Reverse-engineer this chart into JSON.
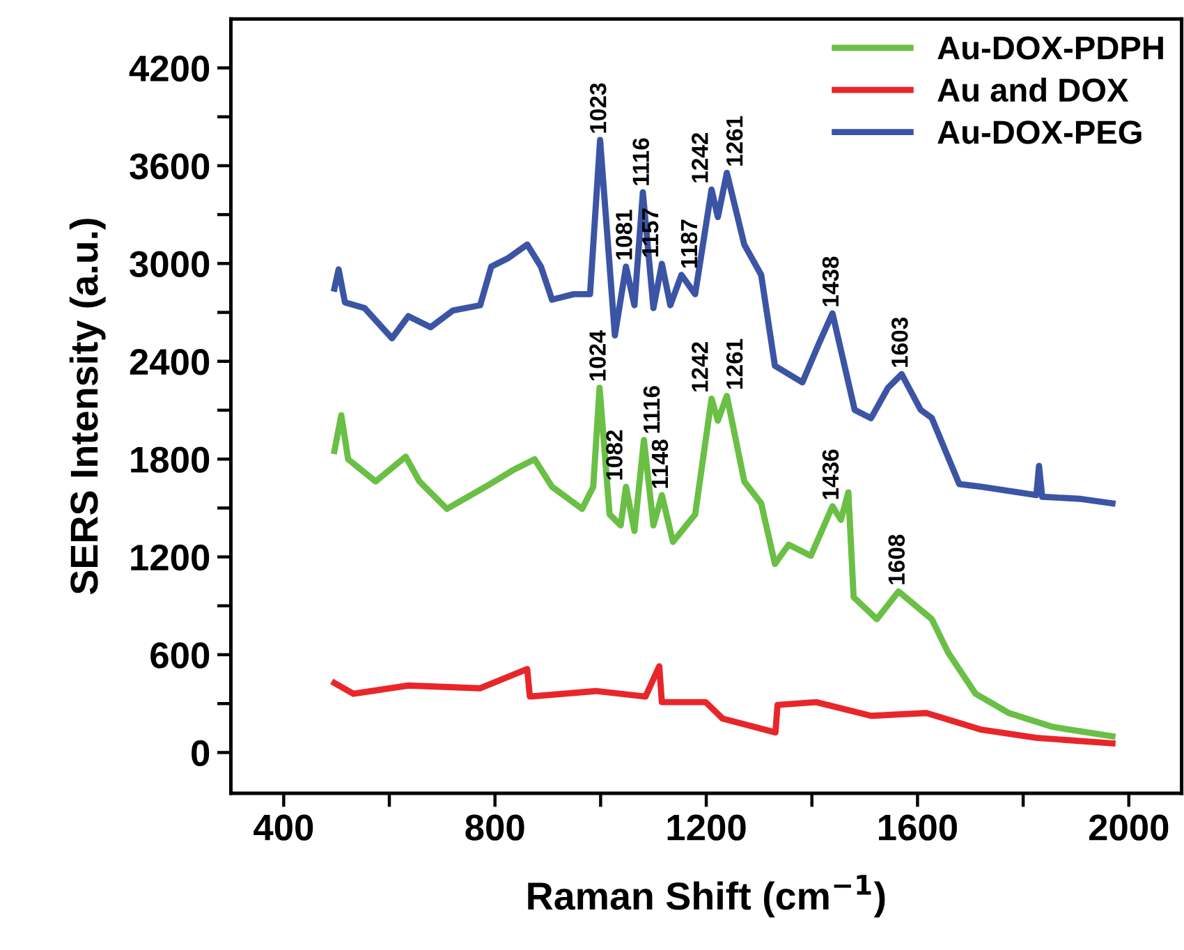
{
  "chart_data": {
    "type": "line",
    "xlabel": "Raman Shift (cm$^{−1}$)",
    "ylabel": "SERS Intensity (a.u.)",
    "xlim": [
      300,
      2100
    ],
    "ylim": [
      -250,
      4500
    ],
    "xticks": [
      400,
      {
        "value": 600,
        "label": null
      },
      800,
      {
        "value": 1000,
        "label": null
      },
      1200,
      {
        "value": 1400,
        "label": null
      },
      1600,
      {
        "value": 1800,
        "label": null
      },
      2000
    ],
    "yticks": [
      0,
      {
        "value": 300,
        "label": null
      },
      600,
      {
        "value": 900,
        "label": null
      },
      1200,
      {
        "value": 1500,
        "label": null
      },
      1800,
      {
        "value": 2100,
        "label": null
      },
      2400,
      {
        "value": 2700,
        "label": null
      },
      3000,
      {
        "value": 3300,
        "label": null
      },
      3600,
      {
        "value": 3900,
        "label": null
      },
      4200
    ],
    "legend": "top right",
    "grid": false,
    "marker": "none",
    "line_style": "solid",
    "series": [
      {
        "name": "Au-DOX-PDPH",
        "color": "#6abf45",
        "x": [
          496,
          509,
          522,
          574,
          631,
          657,
          709,
          782,
          834,
          875,
          908,
          965,
          986,
          998,
          1017,
          1038,
          1048,
          1064,
          1082,
          1100,
          1116,
          1137,
          1179,
          1210,
          1222,
          1239,
          1272,
          1304,
          1330,
          1356,
          1398,
          1439,
          1455,
          1469,
          1479,
          1523,
          1564,
          1627,
          1658,
          1710,
          1773,
          1856,
          1969
        ],
        "values": [
          1850,
          2069,
          1799,
          1663,
          1815,
          1663,
          1495,
          1630,
          1732,
          1799,
          1630,
          1495,
          1630,
          2238,
          1461,
          1393,
          1630,
          1359,
          1917,
          1393,
          1579,
          1292,
          1461,
          2171,
          2036,
          2188,
          1663,
          1528,
          1157,
          1275,
          1207,
          1511,
          1427,
          1596,
          953,
          818,
          988,
          818,
          613,
          360,
          242,
          157,
          99
        ]
      },
      {
        "name": "Au and DOX",
        "color": "#e8262a",
        "x": [
          496,
          532,
          636,
          772,
          861,
          866,
          991,
          1085,
          1111,
          1116,
          1199,
          1231,
          1331,
          1335,
          1408,
          1512,
          1617,
          1721,
          1825,
          1969
        ],
        "values": [
          427,
          360,
          411,
          394,
          512,
          343,
          377,
          343,
          529,
          309,
          309,
          208,
          123,
          292,
          309,
          225,
          242,
          140,
          90,
          56
        ]
      },
      {
        "name": "Au-DOX-PEG",
        "color": "#3b54a4",
        "x": [
          496,
          504,
          516,
          553,
          605,
          636,
          678,
          720,
          772,
          793,
          824,
          861,
          887,
          908,
          949,
          980,
          999,
          1027,
          1048,
          1064,
          1080,
          1100,
          1116,
          1132,
          1153,
          1179,
          1210,
          1222,
          1239,
          1272,
          1304,
          1330,
          1382,
          1413,
          1439,
          1481,
          1512,
          1544,
          1570,
          1606,
          1627,
          1679,
          1721,
          1825,
          1830,
          1836,
          1909,
          1969
        ],
        "values": [
          2846,
          2964,
          2761,
          2727,
          2541,
          2677,
          2609,
          2711,
          2744,
          2981,
          3031,
          3116,
          2981,
          2778,
          2812,
          2812,
          3758,
          2559,
          2981,
          2744,
          3437,
          2727,
          2998,
          2744,
          2930,
          2812,
          3454,
          3285,
          3556,
          3116,
          2930,
          2372,
          2271,
          2507,
          2694,
          2102,
          2051,
          2237,
          2321,
          2102,
          2052,
          1647,
          1630,
          1579,
          1758,
          1569,
          1556,
          1528
        ]
      }
    ],
    "annotations": [
      {
        "text": "1023",
        "x": 999,
        "y": 3758
      },
      {
        "text": "1081",
        "x": 1048,
        "y": 2981
      },
      {
        "text": "1116",
        "x": 1080,
        "y": 3437
      },
      {
        "text": "1157",
        "x": 1116,
        "y": 2998
      },
      {
        "text": "1187",
        "x": 1153,
        "y": 2930
      },
      {
        "text": "1242",
        "x": 1210,
        "y": 3454
      },
      {
        "text": "1261",
        "x": 1239,
        "y": 3556
      },
      {
        "text": "1438",
        "x": 1439,
        "y": 2694
      },
      {
        "text": "1603",
        "x": 1570,
        "y": 2321
      },
      {
        "text": "1024",
        "x": 998,
        "y": 2238
      },
      {
        "text": "1082",
        "x": 1048,
        "y": 1630
      },
      {
        "text": "1116",
        "x": 1082,
        "y": 1917
      },
      {
        "text": "1148",
        "x": 1116,
        "y": 1579
      },
      {
        "text": "1242",
        "x": 1210,
        "y": 2171
      },
      {
        "text": "1261",
        "x": 1239,
        "y": 2188
      },
      {
        "text": "1436",
        "x": 1439,
        "y": 1511
      },
      {
        "text": "1608",
        "x": 1564,
        "y": 988
      }
    ]
  }
}
